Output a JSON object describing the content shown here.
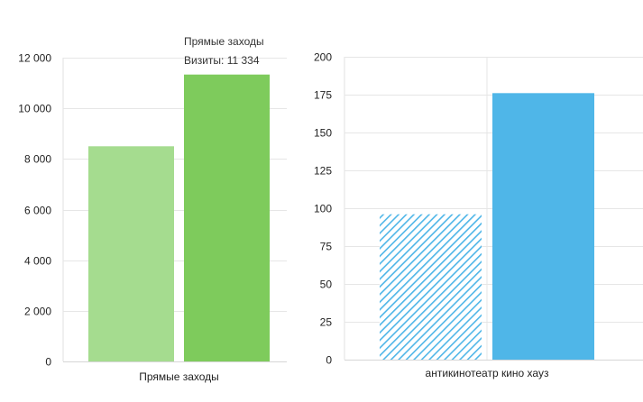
{
  "chart_data": [
    {
      "type": "bar",
      "categories": [
        "Прямые заходы"
      ],
      "series": [
        {
          "values": [
            8500
          ],
          "color": "#a5dc8f"
        },
        {
          "values": [
            11334
          ],
          "color": "#7ecb5c"
        }
      ],
      "ylim": [
        0,
        12000
      ],
      "yticks": [
        "0",
        "2 000",
        "4 000",
        "6 000",
        "8 000",
        "10 000",
        "12 000"
      ],
      "ytick_values": [
        0,
        2000,
        4000,
        6000,
        8000,
        10000,
        12000
      ],
      "grid": true,
      "tooltip": {
        "title": "Прямые заходы",
        "label": "Визиты: 11 334"
      }
    },
    {
      "type": "bar",
      "categories": [
        "антикинотеатр кино хауз"
      ],
      "series": [
        {
          "values": [
            96
          ],
          "color": "#4fb6e8",
          "pattern": "hatched"
        },
        {
          "values": [
            176
          ],
          "color": "#4fb6e8"
        }
      ],
      "ylim": [
        0,
        200
      ],
      "yticks": [
        "0",
        "25",
        "50",
        "75",
        "100",
        "125",
        "150",
        "175",
        "200"
      ],
      "ytick_values": [
        0,
        25,
        50,
        75,
        100,
        125,
        150,
        175,
        200
      ],
      "grid": true
    }
  ]
}
